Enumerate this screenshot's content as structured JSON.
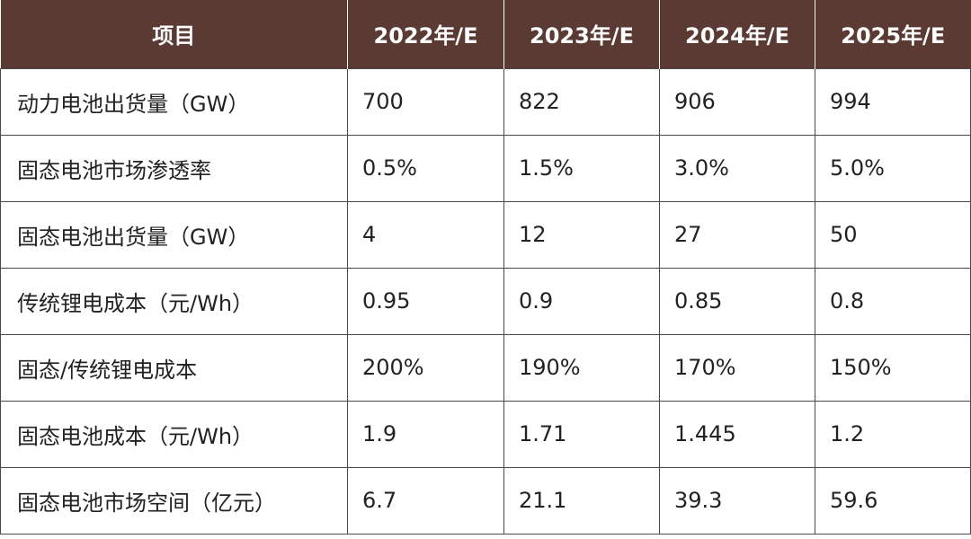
{
  "table": {
    "headers": [
      "项目",
      "2022年/E",
      "2023年/E",
      "2024年/E",
      "2025年/E"
    ],
    "rows": [
      [
        "动力电池出货量（GW）",
        "700",
        "822",
        "906",
        "994"
      ],
      [
        "固态电池市场渗透率",
        "0.5%",
        "1.5%",
        "3.0%",
        "5.0%"
      ],
      [
        "固态电池出货量（GW）",
        "4",
        "12",
        "27",
        "50"
      ],
      [
        "传统锂电成本（元/Wh）",
        "0.95",
        "0.9",
        "0.85",
        "0.8"
      ],
      [
        "固态/传统锂电成本",
        "200%",
        "190%",
        "170%",
        "150%"
      ],
      [
        "固态电池成本（元/Wh）",
        "1.9",
        "1.71",
        "1.445",
        "1.2"
      ],
      [
        "固态电池市场空间（亿元）",
        "6.7",
        "21.1",
        "39.3",
        "59.6"
      ]
    ]
  },
  "colors": {
    "header_bg": "#5a3a33",
    "header_text": "#ffffff",
    "border": "#4a4a4a"
  }
}
